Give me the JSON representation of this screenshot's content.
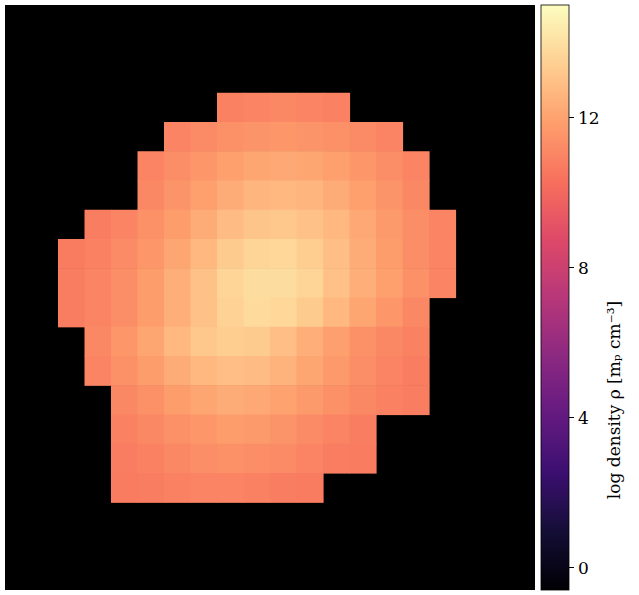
{
  "chart_data": {
    "type": "heatmap",
    "tick_labels": false,
    "cells": [
      [
        null,
        null,
        null,
        null,
        null,
        null,
        null,
        null,
        null,
        null,
        null,
        null,
        null,
        null,
        null,
        null,
        null,
        null,
        null,
        null
      ],
      [
        null,
        null,
        null,
        null,
        null,
        null,
        null,
        null,
        null,
        null,
        null,
        null,
        null,
        null,
        null,
        null,
        null,
        null,
        null,
        null
      ],
      [
        null,
        null,
        null,
        null,
        null,
        null,
        null,
        null,
        null,
        null,
        null,
        null,
        null,
        null,
        null,
        null,
        null,
        null,
        null,
        null
      ],
      [
        null,
        null,
        null,
        null,
        null,
        null,
        null,
        null,
        10.9,
        11.0,
        11.1,
        11.0,
        10.9,
        null,
        null,
        null,
        null,
        null,
        null,
        null
      ],
      [
        null,
        null,
        null,
        null,
        null,
        null,
        11.0,
        11.2,
        11.4,
        11.5,
        11.6,
        11.5,
        11.4,
        11.2,
        11.0,
        null,
        null,
        null,
        null,
        null
      ],
      [
        null,
        null,
        null,
        null,
        null,
        11.0,
        11.3,
        11.6,
        11.9,
        12.1,
        12.2,
        12.1,
        11.9,
        11.6,
        11.3,
        11.0,
        null,
        null,
        null,
        null
      ],
      [
        null,
        null,
        null,
        null,
        null,
        11.1,
        11.5,
        11.9,
        12.3,
        12.6,
        12.7,
        12.6,
        12.3,
        11.9,
        11.5,
        11.1,
        null,
        null,
        null,
        null
      ],
      [
        null,
        null,
        null,
        10.8,
        11.0,
        11.4,
        11.8,
        12.3,
        12.8,
        13.1,
        13.2,
        13.0,
        12.7,
        12.2,
        11.7,
        11.3,
        11.0,
        null,
        null,
        null
      ],
      [
        null,
        null,
        10.7,
        10.9,
        11.2,
        11.6,
        12.1,
        12.7,
        13.3,
        13.6,
        13.7,
        13.4,
        12.9,
        12.3,
        11.8,
        11.3,
        11.0,
        null,
        null,
        null
      ],
      [
        null,
        null,
        10.8,
        11.0,
        11.3,
        11.8,
        12.4,
        13.0,
        13.6,
        13.9,
        13.9,
        13.6,
        13.0,
        12.4,
        11.9,
        11.4,
        11.0,
        null,
        null,
        null
      ],
      [
        null,
        null,
        10.8,
        11.0,
        11.3,
        11.8,
        12.4,
        13.0,
        13.5,
        13.8,
        13.7,
        13.3,
        12.7,
        12.1,
        11.6,
        11.1,
        null,
        null,
        null,
        null
      ],
      [
        null,
        null,
        null,
        11.1,
        11.6,
        12.1,
        12.7,
        13.2,
        13.4,
        13.3,
        12.9,
        12.4,
        11.9,
        11.4,
        11.1,
        10.9,
        null,
        null,
        null,
        null
      ],
      [
        null,
        null,
        null,
        11.0,
        11.4,
        11.8,
        12.3,
        12.7,
        12.9,
        12.8,
        12.5,
        12.1,
        11.7,
        11.3,
        11.0,
        10.8,
        null,
        null,
        null,
        null
      ],
      [
        null,
        null,
        null,
        null,
        11.1,
        11.4,
        11.8,
        12.1,
        12.3,
        12.2,
        12.0,
        11.7,
        11.4,
        11.1,
        10.9,
        10.8,
        null,
        null,
        null,
        null
      ],
      [
        null,
        null,
        null,
        null,
        10.9,
        11.1,
        11.4,
        11.6,
        11.8,
        11.7,
        11.5,
        11.2,
        11.0,
        10.8,
        null,
        null,
        null,
        null,
        null,
        null
      ],
      [
        null,
        null,
        null,
        null,
        10.8,
        10.9,
        11.1,
        11.3,
        11.4,
        11.3,
        11.2,
        11.0,
        10.8,
        10.7,
        null,
        null,
        null,
        null,
        null,
        null
      ],
      [
        null,
        null,
        null,
        null,
        10.7,
        10.8,
        10.9,
        11.0,
        11.0,
        10.9,
        10.8,
        10.7,
        null,
        null,
        null,
        null,
        null,
        null,
        null,
        null
      ],
      [
        null,
        null,
        null,
        null,
        null,
        null,
        null,
        null,
        null,
        null,
        null,
        null,
        null,
        null,
        null,
        null,
        null,
        null,
        null,
        null
      ],
      [
        null,
        null,
        null,
        null,
        null,
        null,
        null,
        null,
        null,
        null,
        null,
        null,
        null,
        null,
        null,
        null,
        null,
        null,
        null,
        null
      ],
      [
        null,
        null,
        null,
        null,
        null,
        null,
        null,
        null,
        null,
        null,
        null,
        null,
        null,
        null,
        null,
        null,
        null,
        null,
        null,
        null
      ]
    ],
    "colorbar": {
      "label": "log density ρ [mₚ cm⁻³]",
      "range": [
        -0.6,
        15
      ],
      "ticks": [
        0,
        4,
        8,
        12
      ]
    }
  }
}
